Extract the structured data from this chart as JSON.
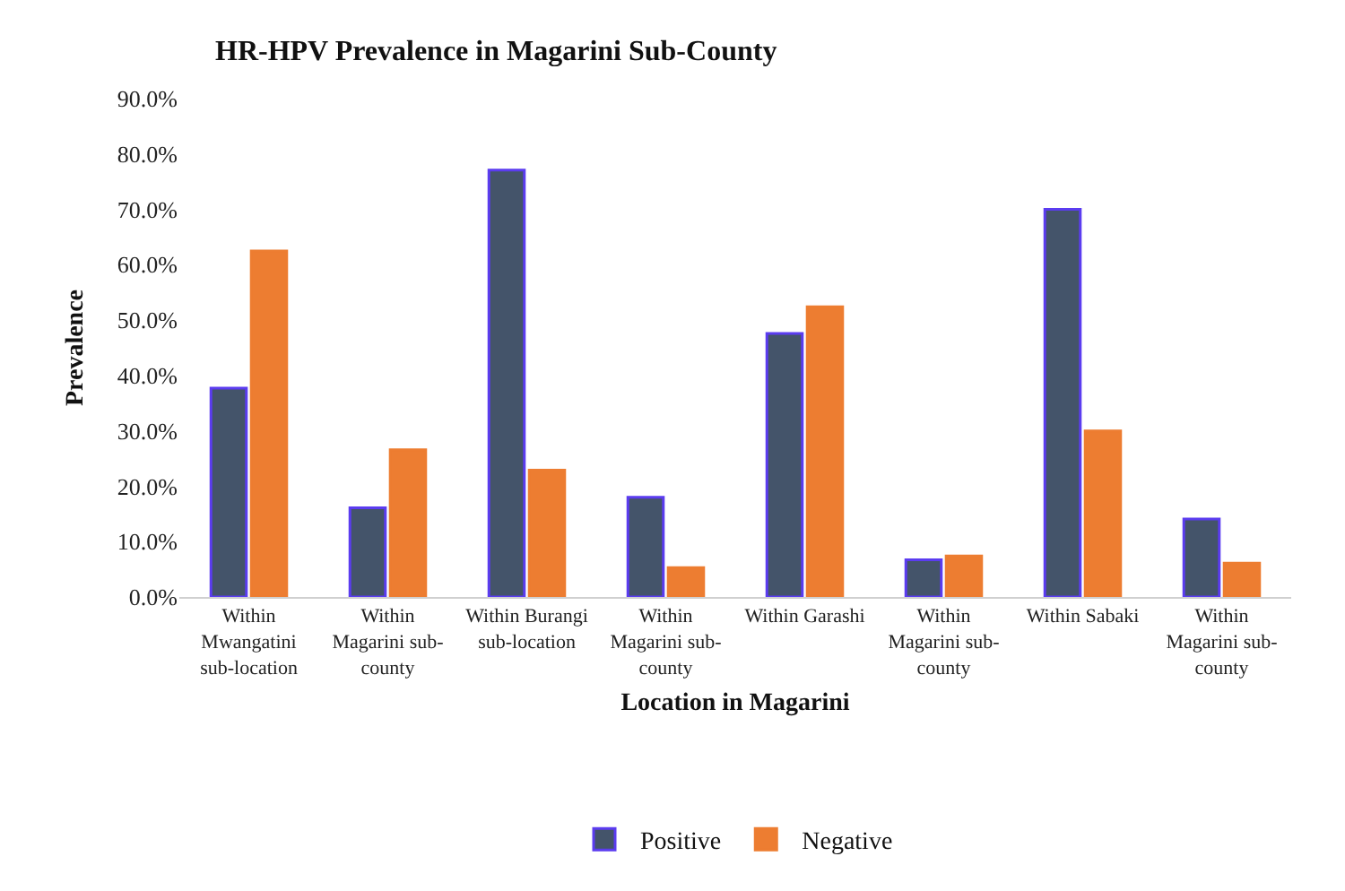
{
  "chart_data": {
    "type": "bar",
    "title": "HR-HPV Prevalence in Magarini Sub-County",
    "xlabel": "Location in Magarini",
    "ylabel": "Prevalence",
    "categories": [
      "Within\nMwangatini\nsub-location",
      "Within\nMagarini sub-\ncounty",
      "Within Burangi\nsub-location",
      "Within\nMagarini sub-\ncounty",
      "Within Garashi",
      "Within\nMagarini sub-\ncounty",
      "Within Sabaki",
      "Within\nMagarini sub-\ncounty"
    ],
    "series": [
      {
        "name": "Positive",
        "color": "#44546a",
        "values": [
          37.7,
          16.1,
          77.1,
          18.0,
          47.6,
          6.7,
          70.0,
          14.1
        ]
      },
      {
        "name": "Negative",
        "color": "#ed7d31",
        "values": [
          62.5,
          26.6,
          22.9,
          5.3,
          52.4,
          7.4,
          30.0,
          6.1
        ]
      }
    ],
    "ylim": [
      0,
      90
    ],
    "yticks": [
      {
        "value": 0,
        "label": "0.0%"
      },
      {
        "value": 10,
        "label": "10.0%"
      },
      {
        "value": 20,
        "label": "20.0%"
      },
      {
        "value": 30,
        "label": "30.0%"
      },
      {
        "value": 40,
        "label": "40.0%"
      },
      {
        "value": 50,
        "label": "50.0%"
      },
      {
        "value": 60,
        "label": "60.0%"
      },
      {
        "value": 70,
        "label": "70.0%"
      },
      {
        "value": 80,
        "label": "80.0%"
      },
      {
        "value": 90,
        "label": "90.0%"
      }
    ],
    "grid": false,
    "legend": "bottom"
  }
}
